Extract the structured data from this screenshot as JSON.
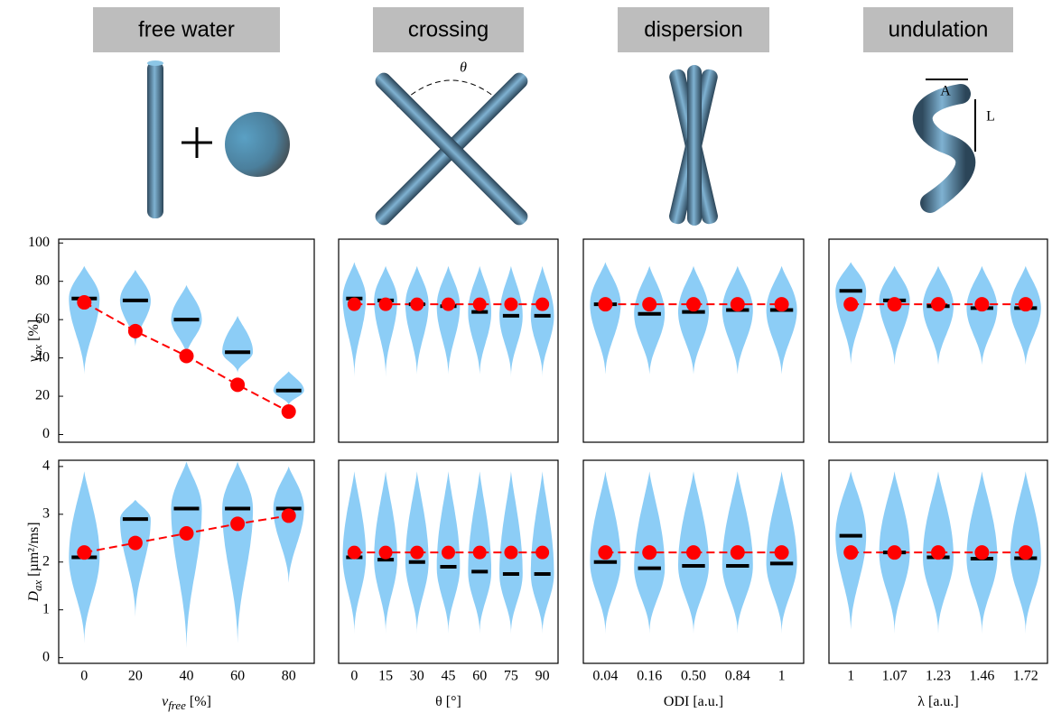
{
  "chart_data": [
    {
      "type": "violin",
      "title": "free water",
      "ylabel": [
        "ν",
        "ax",
        " [%]"
      ],
      "ylim": [
        -4,
        102
      ],
      "yticks": [
        0,
        20,
        40,
        60,
        80,
        100
      ],
      "truth": [
        69,
        54,
        41,
        26,
        12
      ],
      "median": [
        71,
        70,
        60,
        43,
        23
      ],
      "violin_min": [
        30,
        45,
        40,
        32,
        15
      ],
      "violin_max": [
        88,
        86,
        78,
        62,
        33
      ],
      "violin_color": "#8ccdf6",
      "truth_color": "#ff0000",
      "median_color": "#000000"
    },
    {
      "type": "violin",
      "title": "crossing",
      "annotations": [
        "θ"
      ],
      "ylim": [
        -4,
        102
      ],
      "truth": [
        68,
        68,
        68,
        68,
        68,
        68,
        68
      ],
      "median": [
        71,
        70,
        68,
        67,
        64,
        62,
        62
      ],
      "violin_min": [
        30,
        30,
        30,
        30,
        30,
        30,
        30
      ],
      "violin_max": [
        90,
        88,
        88,
        88,
        88,
        88,
        88
      ],
      "violin_color": "#8ccdf6",
      "truth_color": "#ff0000",
      "median_color": "#000000"
    },
    {
      "type": "violin",
      "title": "dispersion",
      "ylim": [
        -4,
        102
      ],
      "truth": [
        68,
        68,
        68,
        68,
        68
      ],
      "median": [
        68,
        63,
        64,
        65,
        65
      ],
      "violin_min": [
        30,
        30,
        30,
        30,
        30
      ],
      "violin_max": [
        90,
        88,
        88,
        88,
        88
      ],
      "violin_color": "#8ccdf6",
      "truth_color": "#ff0000",
      "median_color": "#000000"
    },
    {
      "type": "violin",
      "title": "undulation",
      "annotations": [
        "A",
        "L"
      ],
      "ylim": [
        -4,
        102
      ],
      "truth": [
        68,
        68,
        68,
        68,
        68
      ],
      "median": [
        75,
        70,
        67,
        66,
        66
      ],
      "violin_min": [
        35,
        35,
        35,
        35,
        35
      ],
      "violin_max": [
        90,
        88,
        88,
        88,
        88
      ],
      "violin_color": "#8ccdf6",
      "truth_color": "#ff0000",
      "median_color": "#000000"
    },
    {
      "type": "violin",
      "ylabel": [
        "D",
        "ax",
        " [µm²/ms]"
      ],
      "xlabel": [
        "v",
        "free",
        " [%]"
      ],
      "ylim": [
        -0.12,
        4.13
      ],
      "yticks": [
        0,
        1,
        2,
        3,
        4
      ],
      "categories": [
        "0",
        "20",
        "40",
        "60",
        "80"
      ],
      "truth": [
        2.2,
        2.4,
        2.6,
        2.8,
        2.97
      ],
      "median": [
        2.1,
        2.9,
        3.12,
        3.12,
        3.12
      ],
      "violin_min": [
        0.3,
        0.8,
        0.1,
        0.2,
        1.5
      ],
      "violin_max": [
        3.9,
        3.3,
        4.1,
        4.1,
        4.0
      ],
      "violin_color": "#8ccdf6",
      "truth_color": "#ff0000",
      "median_color": "#000000"
    },
    {
      "type": "violin",
      "xlabel": [
        "θ [°]"
      ],
      "ylim": [
        -0.12,
        4.13
      ],
      "categories": [
        "0",
        "15",
        "30",
        "45",
        "60",
        "75",
        "90"
      ],
      "truth": [
        2.2,
        2.2,
        2.2,
        2.2,
        2.2,
        2.2,
        2.2
      ],
      "median": [
        2.1,
        2.05,
        2.0,
        1.9,
        1.8,
        1.75,
        1.75
      ],
      "violin_min": [
        0.5,
        0.5,
        0.5,
        0.5,
        0.5,
        0.5,
        0.5
      ],
      "violin_max": [
        3.9,
        3.9,
        3.9,
        3.9,
        3.9,
        3.9,
        3.9
      ],
      "violin_color": "#8ccdf6",
      "truth_color": "#ff0000",
      "median_color": "#000000"
    },
    {
      "type": "violin",
      "xlabel": [
        "ODI [a.u.]"
      ],
      "ylim": [
        -0.12,
        4.13
      ],
      "categories": [
        "0.04",
        "0.16",
        "0.50",
        "0.84",
        "1"
      ],
      "truth": [
        2.2,
        2.2,
        2.2,
        2.2,
        2.2
      ],
      "median": [
        2.0,
        1.87,
        1.92,
        1.92,
        1.97
      ],
      "violin_min": [
        0.5,
        0.5,
        0.5,
        0.5,
        0.5
      ],
      "violin_max": [
        3.9,
        3.9,
        3.9,
        3.9,
        3.9
      ],
      "violin_color": "#8ccdf6",
      "truth_color": "#ff0000",
      "median_color": "#000000"
    },
    {
      "type": "violin",
      "xlabel": [
        "λ [a.u.]"
      ],
      "ylim": [
        -0.12,
        4.13
      ],
      "categories": [
        "1",
        "1.07",
        "1.23",
        "1.46",
        "1.72"
      ],
      "truth": [
        2.2,
        2.2,
        2.2,
        2.2,
        2.2
      ],
      "median": [
        2.55,
        2.2,
        2.1,
        2.07,
        2.08
      ],
      "violin_min": [
        0.5,
        0.5,
        0.5,
        0.5,
        0.5
      ],
      "violin_max": [
        3.9,
        3.9,
        3.9,
        3.9,
        3.9
      ],
      "violin_color": "#8ccdf6",
      "truth_color": "#ff0000",
      "median_color": "#000000"
    }
  ]
}
